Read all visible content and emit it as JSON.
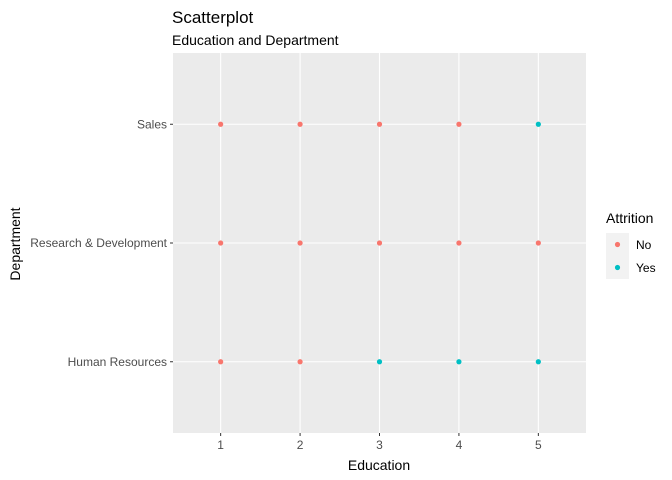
{
  "chart_data": {
    "type": "scatter",
    "title": "Scatterplot",
    "subtitle": "Education and Department",
    "xlabel": "Education",
    "ylabel": "Department",
    "x_ticks": [
      1,
      2,
      3,
      4,
      5
    ],
    "xlim": [
      0.4,
      5.6
    ],
    "y_categories": [
      "Human Resources",
      "Research & Development",
      "Sales"
    ],
    "grid": true,
    "legend": {
      "title": "Attrition",
      "position": "right",
      "entries": [
        {
          "label": "No",
          "color": "#F8766D"
        },
        {
          "label": "Yes",
          "color": "#00BFC4"
        }
      ]
    },
    "series": [
      {
        "name": "No",
        "color": "#F8766D",
        "points": [
          {
            "x": 1,
            "y": "Sales"
          },
          {
            "x": 2,
            "y": "Sales"
          },
          {
            "x": 3,
            "y": "Sales"
          },
          {
            "x": 4,
            "y": "Sales"
          },
          {
            "x": 1,
            "y": "Research & Development"
          },
          {
            "x": 2,
            "y": "Research & Development"
          },
          {
            "x": 3,
            "y": "Research & Development"
          },
          {
            "x": 4,
            "y": "Research & Development"
          },
          {
            "x": 5,
            "y": "Research & Development"
          },
          {
            "x": 1,
            "y": "Human Resources"
          },
          {
            "x": 2,
            "y": "Human Resources"
          }
        ]
      },
      {
        "name": "Yes",
        "color": "#00BFC4",
        "points": [
          {
            "x": 5,
            "y": "Sales"
          },
          {
            "x": 3,
            "y": "Human Resources"
          },
          {
            "x": 4,
            "y": "Human Resources"
          },
          {
            "x": 5,
            "y": "Human Resources"
          }
        ]
      }
    ]
  }
}
